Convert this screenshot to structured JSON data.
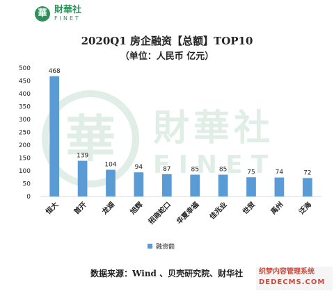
{
  "brand": {
    "badge": "華",
    "name_cn": "財華社",
    "name_en": "FINET"
  },
  "watermark": {
    "badge": "華",
    "name_cn": "財華社",
    "name_en": "FINET"
  },
  "chart_data": {
    "type": "bar",
    "title": "2020Q1 房企融资【总额】TOP10",
    "subtitle": "（单位：人民币 亿元）",
    "categories": [
      "恒大",
      "首开",
      "龙湖",
      "旭辉",
      "招商蛇口",
      "华夏幸福",
      "佳兆业",
      "世贸",
      "禹州",
      "泛海"
    ],
    "series": [
      {
        "name": "融资额",
        "values": [
          468,
          139,
          104,
          94,
          87,
          85,
          85,
          75,
          74,
          72
        ],
        "color": "#5b9bd5"
      }
    ],
    "ylim": [
      0,
      500
    ],
    "yticks": [
      0,
      50,
      100,
      150,
      200,
      250,
      300,
      350,
      400,
      450,
      500
    ],
    "grid": false,
    "legend": "bottom"
  },
  "source_text": "数据来源：Wind 、贝壳研究院、财华社",
  "overlay_stamp": {
    "line1": "织梦内容管理系统",
    "line2": "DEDECMS.COM"
  }
}
